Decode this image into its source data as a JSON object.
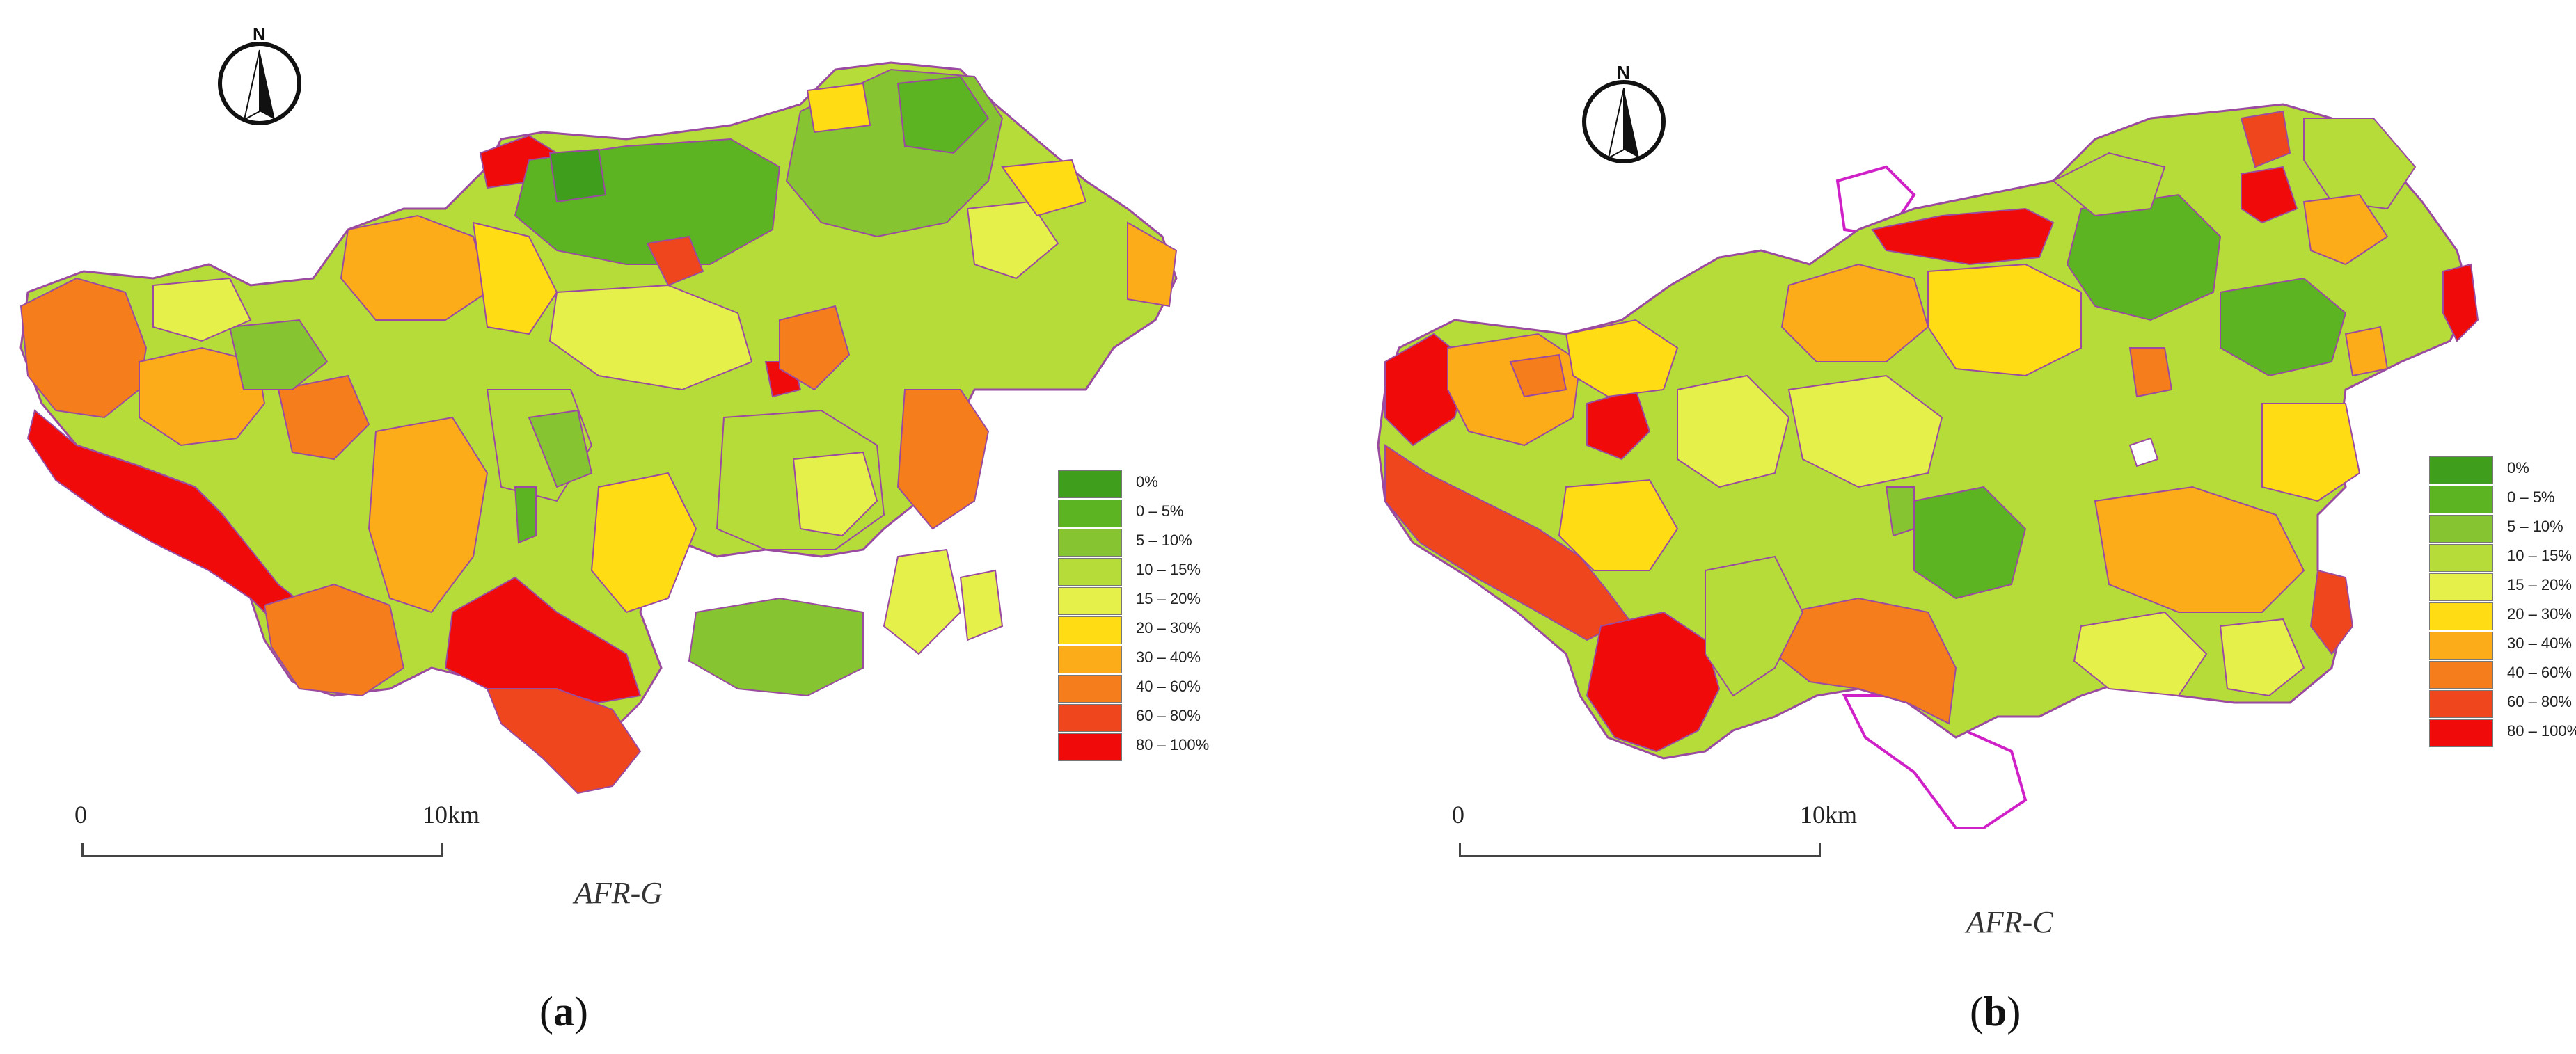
{
  "legend": {
    "items": [
      {
        "label": "0%",
        "color": "#3f9e1c"
      },
      {
        "label": "0 – 5%",
        "color": "#5cb422"
      },
      {
        "label": "5 – 10%",
        "color": "#86c431"
      },
      {
        "label": "10 – 15%",
        "color": "#b6dc3a"
      },
      {
        "label": "15 – 20%",
        "color": "#e6f04a"
      },
      {
        "label": "20 – 30%",
        "color": "#ffdc14"
      },
      {
        "label": "30 – 40%",
        "color": "#fbac18"
      },
      {
        "label": "40 – 60%",
        "color": "#f67d1c"
      },
      {
        "label": "60 – 80%",
        "color": "#f0461e"
      },
      {
        "label": "80 – 100%",
        "color": "#f00a0a"
      }
    ]
  },
  "panels": [
    {
      "title": "AFR-G",
      "label_paren_open": "(",
      "label_letter": "a",
      "label_paren_close": ")",
      "north": "N",
      "scale_zero": "0",
      "scale_end": "10km"
    },
    {
      "title": "AFR-C",
      "label_paren_open": "(",
      "label_letter": "b",
      "label_paren_close": ")",
      "north": "N",
      "scale_zero": "0",
      "scale_end": "10km"
    }
  ],
  "colors": {
    "boundary": "#9a4aa0",
    "outline_b": "#d020c8"
  }
}
